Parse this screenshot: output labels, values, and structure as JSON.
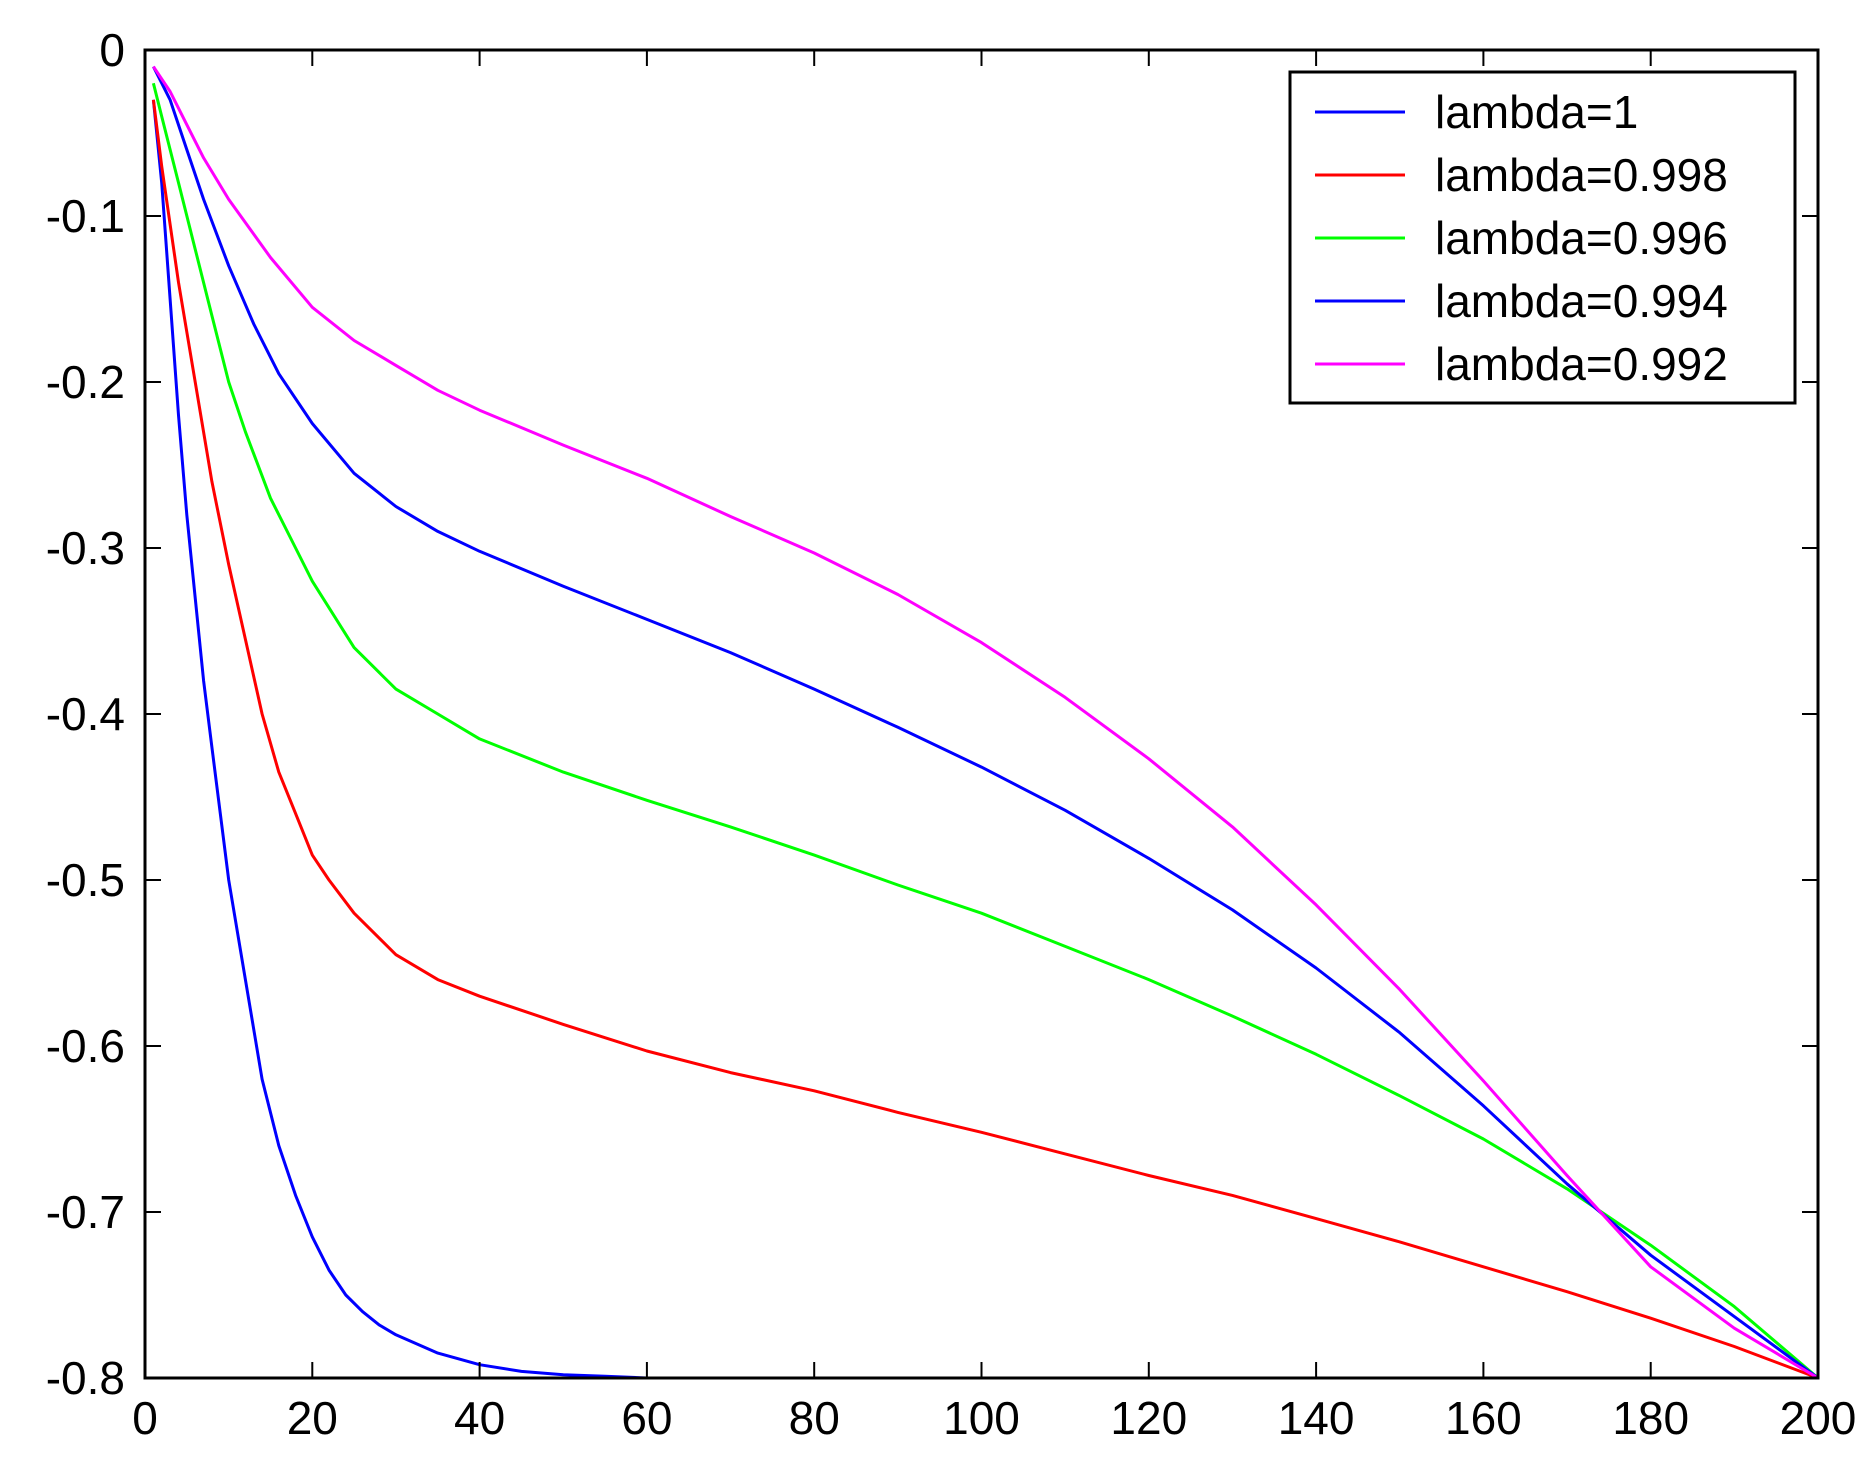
{
  "chart_data": {
    "type": "line",
    "title": "",
    "xlabel": "",
    "ylabel": "",
    "xlim": [
      0,
      200
    ],
    "ylim": [
      -0.8,
      0
    ],
    "xticks": [
      0,
      20,
      40,
      60,
      80,
      100,
      120,
      140,
      160,
      180,
      200
    ],
    "yticks": [
      0,
      -0.1,
      -0.2,
      -0.3,
      -0.4,
      -0.5,
      -0.6,
      -0.7,
      -0.8
    ],
    "xtick_labels": [
      "0",
      "20",
      "40",
      "60",
      "80",
      "100",
      "120",
      "140",
      "160",
      "180",
      "200"
    ],
    "ytick_labels": [
      "0",
      "-0.1",
      "-0.2",
      "-0.3",
      "-0.4",
      "-0.5",
      "-0.6",
      "-0.7",
      "-0.8"
    ],
    "grid": false,
    "legend_position": "top-right",
    "series": [
      {
        "name": "lambda=1",
        "color": "#0000ff",
        "x": [
          1,
          2,
          3,
          4,
          5,
          6,
          7,
          8,
          9,
          10,
          12,
          14,
          16,
          18,
          20,
          22,
          24,
          26,
          28,
          30,
          35,
          40,
          45,
          50,
          55,
          60,
          80,
          100,
          120,
          140,
          160,
          180,
          200
        ],
        "y": [
          -0.03,
          -0.08,
          -0.15,
          -0.22,
          -0.28,
          -0.33,
          -0.38,
          -0.42,
          -0.46,
          -0.5,
          -0.56,
          -0.62,
          -0.66,
          -0.69,
          -0.715,
          -0.735,
          -0.75,
          -0.76,
          -0.768,
          -0.774,
          -0.785,
          -0.792,
          -0.796,
          -0.798,
          -0.799,
          -0.8,
          -0.8,
          -0.8,
          -0.8,
          -0.8,
          -0.8,
          -0.8,
          -0.8
        ]
      },
      {
        "name": "lambda=0.998",
        "color": "#ff0000",
        "x": [
          1,
          2,
          4,
          6,
          8,
          10,
          12,
          14,
          16,
          18,
          20,
          22,
          25,
          30,
          35,
          40,
          50,
          60,
          70,
          80,
          90,
          100,
          110,
          120,
          130,
          140,
          150,
          160,
          170,
          180,
          190,
          200
        ],
        "y": [
          -0.03,
          -0.07,
          -0.14,
          -0.2,
          -0.26,
          -0.31,
          -0.355,
          -0.4,
          -0.435,
          -0.46,
          -0.485,
          -0.5,
          -0.52,
          -0.545,
          -0.56,
          -0.57,
          -0.587,
          -0.603,
          -0.616,
          -0.627,
          -0.64,
          -0.652,
          -0.665,
          -0.678,
          -0.69,
          -0.704,
          -0.718,
          -0.733,
          -0.748,
          -0.764,
          -0.781,
          -0.8
        ]
      },
      {
        "name": "lambda=0.996",
        "color": "#00ff00",
        "x": [
          1,
          2,
          4,
          6,
          8,
          10,
          12,
          15,
          18,
          20,
          25,
          30,
          35,
          40,
          50,
          60,
          70,
          80,
          90,
          100,
          110,
          120,
          130,
          140,
          150,
          160,
          170,
          180,
          190,
          200
        ],
        "y": [
          -0.02,
          -0.04,
          -0.08,
          -0.12,
          -0.16,
          -0.2,
          -0.23,
          -0.27,
          -0.3,
          -0.32,
          -0.36,
          -0.385,
          -0.4,
          -0.415,
          -0.435,
          -0.452,
          -0.468,
          -0.485,
          -0.503,
          -0.52,
          -0.54,
          -0.56,
          -0.582,
          -0.605,
          -0.63,
          -0.656,
          -0.686,
          -0.72,
          -0.757,
          -0.8
        ]
      },
      {
        "name": "lambda=0.994",
        "color": "#0000ff",
        "x": [
          1,
          3,
          5,
          7,
          10,
          13,
          16,
          20,
          25,
          30,
          35,
          40,
          50,
          60,
          70,
          80,
          90,
          100,
          110,
          120,
          130,
          140,
          150,
          160,
          170,
          180,
          190,
          200
        ],
        "y": [
          -0.01,
          -0.03,
          -0.06,
          -0.09,
          -0.13,
          -0.165,
          -0.195,
          -0.225,
          -0.255,
          -0.275,
          -0.29,
          -0.302,
          -0.323,
          -0.343,
          -0.363,
          -0.385,
          -0.408,
          -0.432,
          -0.458,
          -0.487,
          -0.518,
          -0.553,
          -0.592,
          -0.636,
          -0.683,
          -0.726,
          -0.763,
          -0.8
        ]
      },
      {
        "name": "lambda=0.992",
        "color": "#ff00ff",
        "x": [
          1,
          3,
          5,
          7,
          10,
          15,
          20,
          25,
          30,
          35,
          40,
          50,
          60,
          70,
          80,
          90,
          100,
          110,
          120,
          130,
          140,
          150,
          160,
          170,
          180,
          190,
          200
        ],
        "y": [
          -0.01,
          -0.025,
          -0.045,
          -0.065,
          -0.09,
          -0.125,
          -0.155,
          -0.175,
          -0.19,
          -0.205,
          -0.217,
          -0.238,
          -0.258,
          -0.281,
          -0.303,
          -0.328,
          -0.357,
          -0.39,
          -0.427,
          -0.468,
          -0.515,
          -0.566,
          -0.621,
          -0.678,
          -0.733,
          -0.77,
          -0.8
        ]
      }
    ]
  }
}
